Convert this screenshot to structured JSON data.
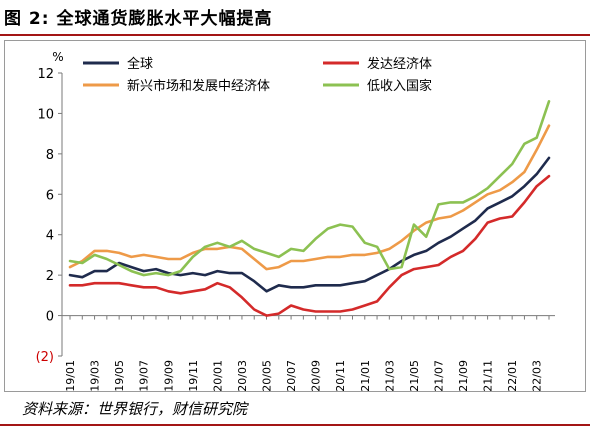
{
  "figure": {
    "title": "图 2:  全球通货膨胀水平大幅提高",
    "source": "资料来源：世界银行，财信研究院"
  },
  "chart_data": {
    "type": "line",
    "unit_label": "%",
    "ylim": [
      -2,
      12
    ],
    "yticks": [
      -2,
      0,
      2,
      4,
      6,
      8,
      10,
      12
    ],
    "ytick_labels": [
      "(2)",
      "0",
      "2",
      "4",
      "6",
      "8",
      "10",
      "12"
    ],
    "negative_tick_color": "#cc0000",
    "grid": false,
    "zero_line": true,
    "legend_position": "top",
    "x_tick_labels": [
      "2019/01",
      "2019/03",
      "2019/05",
      "2019/07",
      "2019/09",
      "2019/11",
      "2020/01",
      "2020/03",
      "2020/05",
      "2020/07",
      "2020/09",
      "2020/11",
      "2021/01",
      "2021/03",
      "2021/05",
      "2021/07",
      "2021/09",
      "2021/11",
      "2022/01",
      "2022/03"
    ],
    "x": [
      "2019/01",
      "2019/02",
      "2019/03",
      "2019/04",
      "2019/05",
      "2019/06",
      "2019/07",
      "2019/08",
      "2019/09",
      "2019/10",
      "2019/11",
      "2019/12",
      "2020/01",
      "2020/02",
      "2020/03",
      "2020/04",
      "2020/05",
      "2020/06",
      "2020/07",
      "2020/08",
      "2020/09",
      "2020/10",
      "2020/11",
      "2020/12",
      "2021/01",
      "2021/02",
      "2021/03",
      "2021/04",
      "2021/05",
      "2021/06",
      "2021/07",
      "2021/08",
      "2021/09",
      "2021/10",
      "2021/11",
      "2021/12",
      "2022/01",
      "2022/02",
      "2022/03",
      "2022/04"
    ],
    "series": [
      {
        "name": "全球",
        "color": "#1f2b4d",
        "values": [
          2.0,
          1.9,
          2.2,
          2.2,
          2.6,
          2.4,
          2.2,
          2.3,
          2.1,
          2.0,
          2.1,
          2.0,
          2.2,
          2.1,
          2.1,
          1.7,
          1.2,
          1.5,
          1.4,
          1.4,
          1.5,
          1.5,
          1.5,
          1.6,
          1.7,
          2.0,
          2.3,
          2.7,
          3.0,
          3.2,
          3.6,
          3.9,
          4.3,
          4.7,
          5.3,
          5.6,
          5.9,
          6.4,
          7.0,
          7.8
        ]
      },
      {
        "name": "发达经济体",
        "color": "#d42a2a",
        "values": [
          1.5,
          1.5,
          1.6,
          1.6,
          1.6,
          1.5,
          1.4,
          1.4,
          1.2,
          1.1,
          1.2,
          1.3,
          1.6,
          1.4,
          0.9,
          0.3,
          0.0,
          0.1,
          0.5,
          0.3,
          0.2,
          0.2,
          0.2,
          0.3,
          0.5,
          0.7,
          1.4,
          2.0,
          2.3,
          2.4,
          2.5,
          2.9,
          3.2,
          3.8,
          4.6,
          4.8,
          4.9,
          5.6,
          6.4,
          6.9
        ]
      },
      {
        "name": "新兴市场和发展中经济体",
        "color": "#ee9a48",
        "values": [
          2.4,
          2.7,
          3.2,
          3.2,
          3.1,
          2.9,
          3.0,
          2.9,
          2.8,
          2.8,
          3.1,
          3.3,
          3.3,
          3.4,
          3.3,
          2.8,
          2.3,
          2.4,
          2.7,
          2.7,
          2.8,
          2.9,
          2.9,
          3.0,
          3.0,
          3.1,
          3.3,
          3.7,
          4.2,
          4.6,
          4.8,
          4.9,
          5.2,
          5.6,
          6.0,
          6.2,
          6.6,
          7.1,
          8.2,
          9.4
        ]
      },
      {
        "name": "低收入国家",
        "color": "#8cc152",
        "values": [
          2.7,
          2.6,
          3.0,
          2.8,
          2.5,
          2.2,
          2.0,
          2.1,
          2.0,
          2.2,
          2.9,
          3.4,
          3.6,
          3.4,
          3.7,
          3.3,
          3.1,
          2.9,
          3.3,
          3.2,
          3.8,
          4.3,
          4.5,
          4.4,
          3.6,
          3.4,
          2.3,
          2.4,
          4.5,
          3.9,
          5.5,
          5.6,
          5.6,
          5.9,
          6.3,
          6.9,
          7.5,
          8.5,
          8.8,
          10.6
        ]
      }
    ]
  }
}
